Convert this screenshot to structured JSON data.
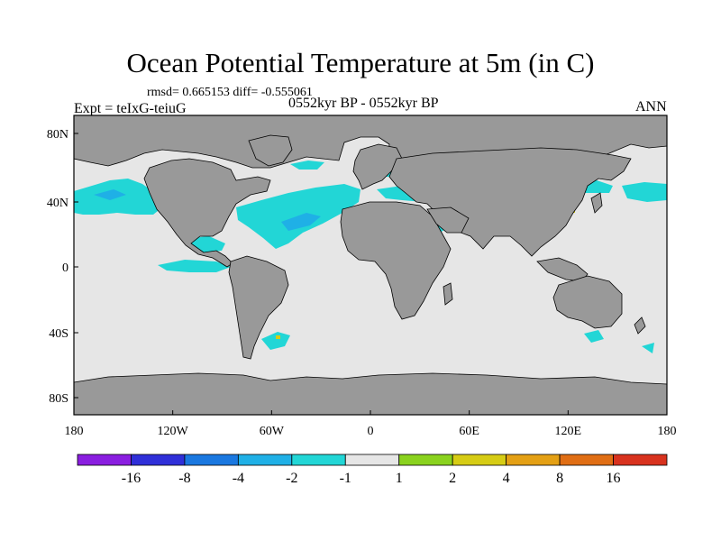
{
  "title": "Ocean Potential Temperature at 5m (in C)",
  "stats_line": "rmsd= 0.665153 diff= -0.555061",
  "expt_line": "Expt = teIxG-teiuG",
  "period_line": "0552kyr BP - 0552kyr BP",
  "season": "ANN",
  "axes": {
    "x_ticks": [
      "180",
      "120W",
      "60W",
      "0",
      "60E",
      "120E",
      "180"
    ],
    "y_ticks": [
      "80N",
      "40N",
      "0",
      "40S",
      "80S"
    ]
  },
  "colorbar": {
    "labels": [
      "-16",
      "-8",
      "-4",
      "-2",
      "-1",
      "1",
      "2",
      "4",
      "8",
      "16"
    ],
    "colors": [
      "#8a1ee0",
      "#2f2fd8",
      "#1a78e0",
      "#1fb0e6",
      "#22d6d6",
      "#e6e6e6",
      "#8ad21e",
      "#d6cc14",
      "#e4a014",
      "#e06e14",
      "#d8321e"
    ]
  },
  "colors": {
    "land": "#999999",
    "ocean_neutral": "#e6e6e6",
    "cool_anomaly": "#22d6d6",
    "cooler_anomaly": "#1fb0e6"
  }
}
